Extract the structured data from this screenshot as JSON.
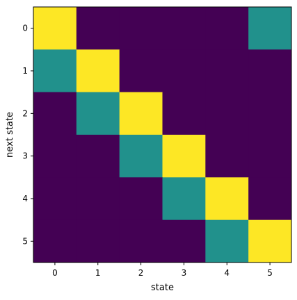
{
  "chart_data": {
    "type": "heatmap",
    "xlabel": "state",
    "ylabel": "next state",
    "x_categories": [
      "0",
      "1",
      "2",
      "3",
      "4",
      "5"
    ],
    "y_categories": [
      "0",
      "1",
      "2",
      "3",
      "4",
      "5"
    ],
    "values": [
      [
        1.0,
        0.0,
        0.0,
        0.0,
        0.0,
        0.5
      ],
      [
        0.5,
        1.0,
        0.0,
        0.0,
        0.0,
        0.0
      ],
      [
        0.0,
        0.5,
        1.0,
        0.0,
        0.0,
        0.0
      ],
      [
        0.0,
        0.0,
        0.5,
        1.0,
        0.0,
        0.0
      ],
      [
        0.0,
        0.0,
        0.0,
        0.5,
        1.0,
        0.0
      ],
      [
        0.0,
        0.0,
        0.0,
        0.0,
        0.5,
        1.0
      ]
    ],
    "colormap": "viridis",
    "color_range": [
      0,
      1
    ],
    "colors": {
      "low": "#440154",
      "mid": "#21918c",
      "high": "#fde725"
    },
    "grid": false
  }
}
